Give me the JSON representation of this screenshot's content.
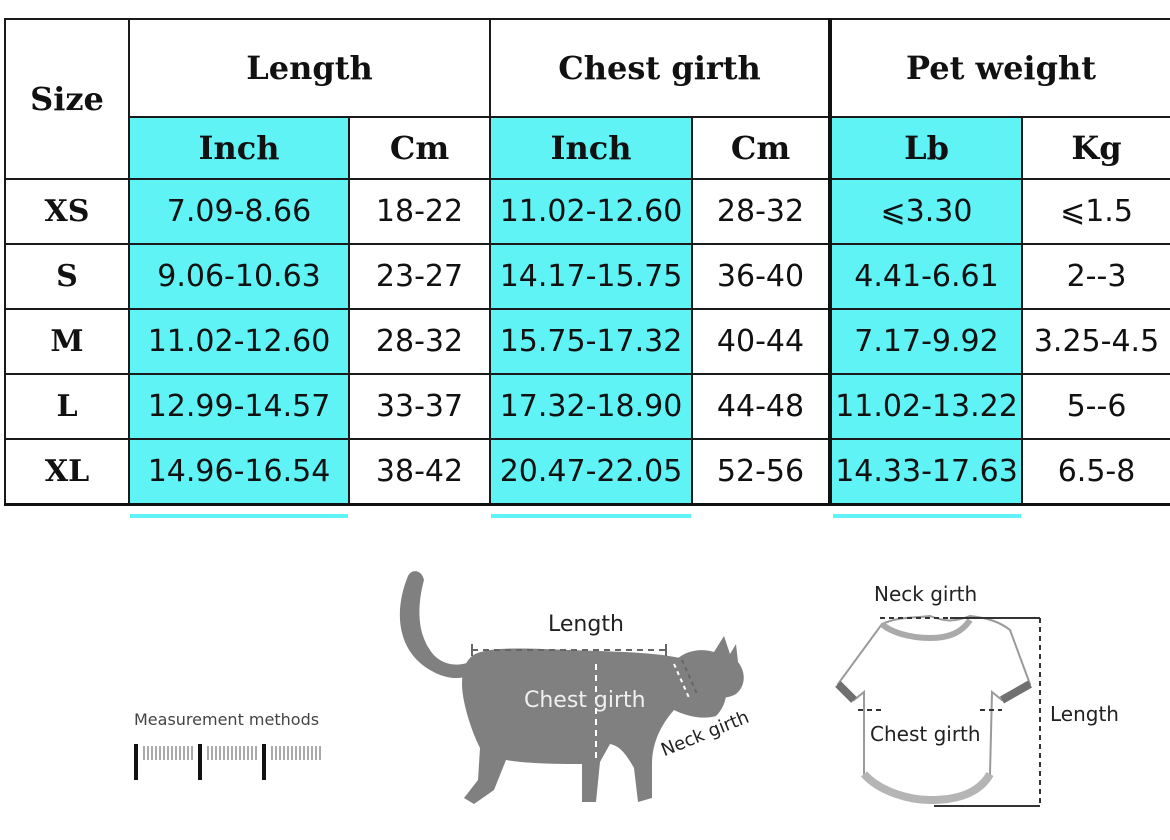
{
  "table": {
    "size_header": "Size",
    "groups": [
      "Length",
      "Chest girth",
      "Pet weight"
    ],
    "units": [
      "Inch",
      "Cm",
      "Inch",
      "Cm",
      "Lb",
      "Kg"
    ],
    "rows": [
      {
        "size": "XS",
        "cells": [
          "7.09-8.66",
          "18-22",
          "11.02-12.60",
          "28-32",
          "⩽3.30",
          "⩽1.5"
        ]
      },
      {
        "size": "S",
        "cells": [
          "9.06-10.63",
          "23-27",
          "14.17-15.75",
          "36-40",
          "4.41-6.61",
          "2--3"
        ]
      },
      {
        "size": "M",
        "cells": [
          "11.02-12.60",
          "28-32",
          "15.75-17.32",
          "40-44",
          "7.17-9.92",
          "3.25-4.5"
        ]
      },
      {
        "size": "L",
        "cells": [
          "12.99-14.57",
          "33-37",
          "17.32-18.90",
          "44-48",
          "11.02-13.22",
          "5--6"
        ]
      },
      {
        "size": "XL",
        "cells": [
          "14.96-16.54",
          "38-42",
          "20.47-22.05",
          "52-56",
          "14.33-17.63",
          "6.5-8"
        ]
      }
    ],
    "colors": {
      "highlight": "#5ff3f5",
      "border": "#1a1a1a"
    }
  },
  "measurement": {
    "title": "Measurement methods",
    "icon": "ruler-icon"
  },
  "cat_diagram": {
    "length_label": "Length",
    "chest_label": "Chest girth",
    "neck_label": "Neck girth",
    "icon": "cat-silhouette-icon"
  },
  "shirt_diagram": {
    "neck_label": "Neck girth",
    "chest_label": "Chest girth",
    "length_label": "Length",
    "icon": "shirt-icon"
  }
}
